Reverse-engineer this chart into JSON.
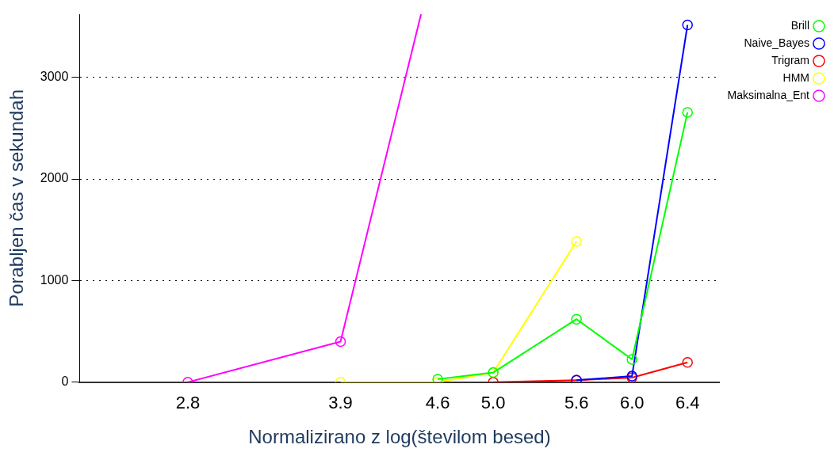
{
  "chart_data": {
    "type": "line",
    "xlabel": "Normalizirano z log(številom besed)",
    "ylabel": "Porabljen čas v sekundah",
    "xlim": [
      2.02,
      6.63
    ],
    "xticks": [
      2.8,
      3.9,
      4.6,
      {
        "value": 5,
        "label": "5.0"
      },
      5.6,
      {
        "value": 6,
        "label": "6.0"
      },
      6.4
    ],
    "ylim": [
      0,
      3620
    ],
    "yticks": [
      0,
      1000,
      2000,
      3000
    ],
    "grid": "y",
    "legend": "top right",
    "marker": "circle",
    "line_style": "solid",
    "series": [
      {
        "name": "Brill",
        "color": "#00ff00",
        "x": [
          4.6,
          5.0,
          5.6,
          6.0,
          6.4
        ],
        "values": [
          30,
          95,
          620,
          225,
          2655
        ]
      },
      {
        "name": "Naive_Bayes",
        "color": "#0000ff",
        "x": [
          5.6,
          6.0,
          6.4
        ],
        "values": [
          20,
          60,
          3515
        ]
      },
      {
        "name": "Trigram",
        "color": "#ff0000",
        "x": [
          5.0,
          5.6,
          6.0,
          6.4
        ],
        "values": [
          0,
          20,
          45,
          195
        ]
      },
      {
        "name": "HMM",
        "color": "#ffff00",
        "x": [
          3.9,
          4.6,
          5.0,
          5.6
        ],
        "values": [
          0,
          0,
          95,
          1385
        ]
      },
      {
        "name": "Maksimalna_Ent",
        "color": "#ff00ff",
        "x": [
          2.8,
          3.9,
          4.48
        ],
        "values": [
          0,
          400,
          3620
        ]
      }
    ]
  }
}
